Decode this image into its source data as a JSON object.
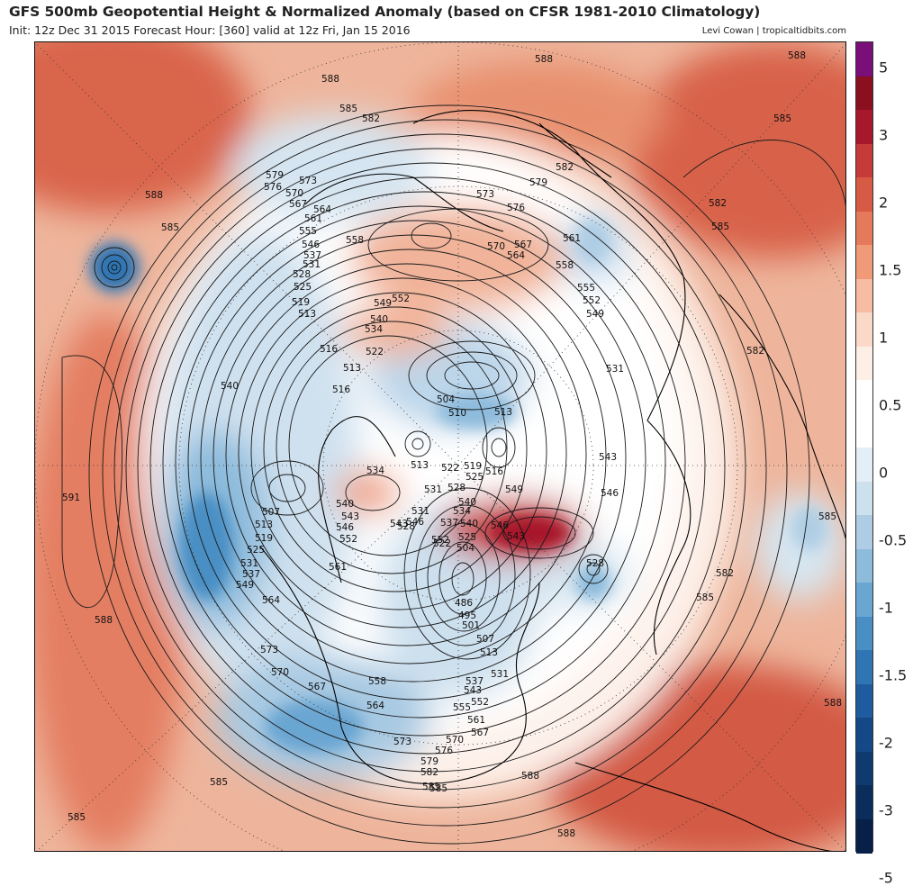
{
  "title": "GFS 500mb Geopotential Height & Normalized Anomaly (based on CFSR 1981-2010 Climatology)",
  "subtitle": "Init: 12z Dec 31 2015   Forecast Hour: [360]   valid at 12z Fri, Jan 15 2016",
  "credit": "Levi Cowan | tropicaltidbits.com",
  "colorbar": {
    "ticks": [
      "5",
      "3",
      "2",
      "1.5",
      "1",
      "0.5",
      "0",
      "-0.5",
      "-1",
      "-1.5",
      "-2",
      "-3",
      "-5"
    ],
    "colors": [
      "#7a0f7a",
      "#8a1020",
      "#a8182c",
      "#c63a3a",
      "#d65a44",
      "#e57a5a",
      "#f09a78",
      "#f7bca2",
      "#fbd9c9",
      "#fdeee6",
      "#ffffff",
      "#ffffff",
      "#e4eef6",
      "#cde0ee",
      "#aecde4",
      "#8dbbdc",
      "#6aa6d2",
      "#4a8fc4",
      "#2f74b3",
      "#1f5c9f",
      "#154886",
      "#0f3a70",
      "#0b2d5c",
      "#081f48"
    ]
  },
  "contour_labels": [
    {
      "text": "588"
    },
    {
      "text": "588"
    },
    {
      "text": "585"
    },
    {
      "text": "582"
    },
    {
      "text": "588"
    },
    {
      "text": "588"
    },
    {
      "text": "585"
    },
    {
      "text": "582"
    },
    {
      "text": "579"
    },
    {
      "text": "576"
    },
    {
      "text": "573"
    },
    {
      "text": "570"
    },
    {
      "text": "567"
    },
    {
      "text": "564"
    },
    {
      "text": "561"
    },
    {
      "text": "558"
    },
    {
      "text": "555"
    },
    {
      "text": "546"
    },
    {
      "text": "537"
    },
    {
      "text": "531"
    },
    {
      "text": "528"
    },
    {
      "text": "525"
    },
    {
      "text": "519"
    },
    {
      "text": "513"
    },
    {
      "text": "516"
    },
    {
      "text": "513"
    },
    {
      "text": "516"
    },
    {
      "text": "522"
    },
    {
      "text": "540"
    },
    {
      "text": "534"
    },
    {
      "text": "549"
    },
    {
      "text": "552"
    },
    {
      "text": "573"
    },
    {
      "text": "576"
    },
    {
      "text": "579"
    },
    {
      "text": "582"
    },
    {
      "text": "585"
    },
    {
      "text": "570"
    },
    {
      "text": "567"
    },
    {
      "text": "564"
    },
    {
      "text": "561"
    },
    {
      "text": "558"
    },
    {
      "text": "555"
    },
    {
      "text": "552"
    },
    {
      "text": "549"
    },
    {
      "text": "531"
    },
    {
      "text": "504"
    },
    {
      "text": "510"
    },
    {
      "text": "513"
    },
    {
      "text": "513"
    },
    {
      "text": "522"
    },
    {
      "text": "525"
    },
    {
      "text": "516"
    },
    {
      "text": "519"
    },
    {
      "text": "528"
    },
    {
      "text": "534"
    },
    {
      "text": "531"
    },
    {
      "text": "540"
    },
    {
      "text": "543"
    },
    {
      "text": "546"
    },
    {
      "text": "552"
    },
    {
      "text": "549"
    },
    {
      "text": "543"
    },
    {
      "text": "546"
    },
    {
      "text": "540"
    },
    {
      "text": "507"
    },
    {
      "text": "513"
    },
    {
      "text": "519"
    },
    {
      "text": "525"
    },
    {
      "text": "531"
    },
    {
      "text": "537"
    },
    {
      "text": "549"
    },
    {
      "text": "564"
    },
    {
      "text": "591"
    },
    {
      "text": "588"
    },
    {
      "text": "540"
    },
    {
      "text": "543"
    },
    {
      "text": "546"
    },
    {
      "text": "552"
    },
    {
      "text": "561"
    },
    {
      "text": "528"
    },
    {
      "text": "531"
    },
    {
      "text": "537"
    },
    {
      "text": "540"
    },
    {
      "text": "534"
    },
    {
      "text": "525"
    },
    {
      "text": "522"
    },
    {
      "text": "504"
    },
    {
      "text": "486"
    },
    {
      "text": "495"
    },
    {
      "text": "501"
    },
    {
      "text": "507"
    },
    {
      "text": "513"
    },
    {
      "text": "531"
    },
    {
      "text": "537"
    },
    {
      "text": "543"
    },
    {
      "text": "552"
    },
    {
      "text": "555"
    },
    {
      "text": "561"
    },
    {
      "text": "567"
    },
    {
      "text": "570"
    },
    {
      "text": "576"
    },
    {
      "text": "579"
    },
    {
      "text": "582"
    },
    {
      "text": "585"
    },
    {
      "text": "588"
    },
    {
      "text": "573"
    },
    {
      "text": "570"
    },
    {
      "text": "567"
    },
    {
      "text": "564"
    },
    {
      "text": "558"
    },
    {
      "text": "573"
    },
    {
      "text": "585"
    },
    {
      "text": "585"
    },
    {
      "text": "582"
    },
    {
      "text": "585"
    },
    {
      "text": "588"
    },
    {
      "text": "585"
    },
    {
      "text": "528"
    },
    {
      "text": "585"
    },
    {
      "text": "588"
    },
    {
      "text": "582"
    },
    {
      "text": "543"
    },
    {
      "text": "546"
    },
    {
      "text": "585"
    }
  ]
}
